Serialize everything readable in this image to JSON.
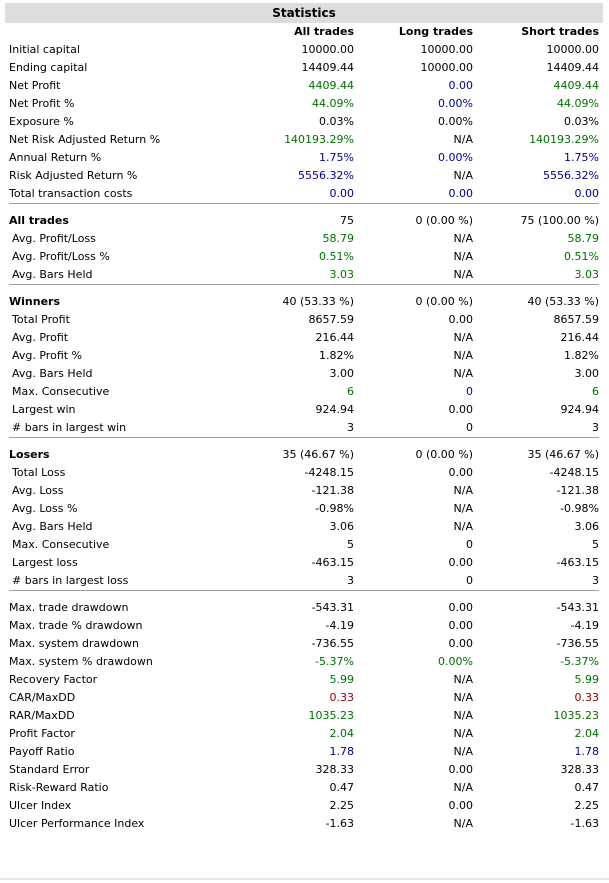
{
  "title": "Statistics",
  "columns": [
    "All trades",
    "Long trades",
    "Short trades"
  ],
  "colors": {
    "positive": "#007000",
    "neutral": "#00008b",
    "negative": "#8b0000",
    "header_bg": "#dddddd"
  },
  "sections": [
    {
      "rows": [
        {
          "label": "Initial capital",
          "values": [
            "10000.00",
            "10000.00",
            "10000.00"
          ],
          "colors": [
            "",
            "",
            ""
          ]
        },
        {
          "label": "Ending capital",
          "values": [
            "14409.44",
            "10000.00",
            "14409.44"
          ],
          "colors": [
            "",
            "",
            ""
          ]
        },
        {
          "label": "Net Profit",
          "values": [
            "4409.44",
            "0.00",
            "4409.44"
          ],
          "colors": [
            "green",
            "blue",
            "green"
          ]
        },
        {
          "label": "Net Profit %",
          "values": [
            "44.09%",
            "0.00%",
            "44.09%"
          ],
          "colors": [
            "green",
            "blue",
            "green"
          ]
        },
        {
          "label": "Exposure %",
          "values": [
            "0.03%",
            "0.00%",
            "0.03%"
          ],
          "colors": [
            "",
            "",
            ""
          ]
        },
        {
          "label": "Net Risk Adjusted Return %",
          "values": [
            "140193.29%",
            "N/A",
            "140193.29%"
          ],
          "colors": [
            "green",
            "",
            "green"
          ]
        },
        {
          "label": "Annual Return %",
          "values": [
            "1.75%",
            "0.00%",
            "1.75%"
          ],
          "colors": [
            "blue",
            "blue",
            "blue"
          ]
        },
        {
          "label": "Risk Adjusted Return %",
          "values": [
            "5556.32%",
            "N/A",
            "5556.32%"
          ],
          "colors": [
            "blue",
            "",
            "blue"
          ]
        },
        {
          "label": "Total transaction costs",
          "values": [
            "0.00",
            "0.00",
            "0.00"
          ],
          "colors": [
            "blue",
            "blue",
            "blue"
          ]
        }
      ]
    },
    {
      "rows": [
        {
          "label": "All trades",
          "head": true,
          "values": [
            "75",
            "0 (0.00 %)",
            "75 (100.00 %)"
          ],
          "colors": [
            "",
            "",
            ""
          ]
        },
        {
          "label": "Avg. Profit/Loss",
          "indent": true,
          "values": [
            "58.79",
            "N/A",
            "58.79"
          ],
          "colors": [
            "green",
            "",
            "green"
          ]
        },
        {
          "label": "Avg. Profit/Loss %",
          "indent": true,
          "values": [
            "0.51%",
            "N/A",
            "0.51%"
          ],
          "colors": [
            "green",
            "",
            "green"
          ]
        },
        {
          "label": "Avg. Bars Held",
          "indent": true,
          "values": [
            "3.03",
            "N/A",
            "3.03"
          ],
          "colors": [
            "green",
            "",
            "green"
          ]
        }
      ]
    },
    {
      "rows": [
        {
          "label": "Winners",
          "head": true,
          "values": [
            "40 (53.33 %)",
            "0 (0.00 %)",
            "40 (53.33 %)"
          ],
          "colors": [
            "",
            "",
            ""
          ]
        },
        {
          "label": "Total Profit",
          "indent": true,
          "values": [
            "8657.59",
            "0.00",
            "8657.59"
          ],
          "colors": [
            "",
            "",
            ""
          ]
        },
        {
          "label": "Avg. Profit",
          "indent": true,
          "values": [
            "216.44",
            "N/A",
            "216.44"
          ],
          "colors": [
            "",
            "",
            ""
          ]
        },
        {
          "label": "Avg. Profit %",
          "indent": true,
          "values": [
            "1.82%",
            "N/A",
            "1.82%"
          ],
          "colors": [
            "",
            "",
            ""
          ]
        },
        {
          "label": "Avg. Bars Held",
          "indent": true,
          "values": [
            "3.00",
            "N/A",
            "3.00"
          ],
          "colors": [
            "",
            "",
            ""
          ]
        },
        {
          "label": "Max. Consecutive",
          "indent": true,
          "values": [
            "6",
            "0",
            "6"
          ],
          "colors": [
            "green",
            "blue",
            "green"
          ]
        },
        {
          "label": "Largest win",
          "indent": true,
          "values": [
            "924.94",
            "0.00",
            "924.94"
          ],
          "colors": [
            "",
            "",
            ""
          ]
        },
        {
          "label": "# bars in largest win",
          "indent": true,
          "values": [
            "3",
            "0",
            "3"
          ],
          "colors": [
            "",
            "",
            ""
          ]
        }
      ]
    },
    {
      "rows": [
        {
          "label": "Losers",
          "head": true,
          "values": [
            "35 (46.67 %)",
            "0 (0.00 %)",
            "35 (46.67 %)"
          ],
          "colors": [
            "",
            "",
            ""
          ]
        },
        {
          "label": "Total Loss",
          "indent": true,
          "values": [
            "-4248.15",
            "0.00",
            "-4248.15"
          ],
          "colors": [
            "",
            "",
            ""
          ]
        },
        {
          "label": "Avg. Loss",
          "indent": true,
          "values": [
            "-121.38",
            "N/A",
            "-121.38"
          ],
          "colors": [
            "",
            "",
            ""
          ]
        },
        {
          "label": "Avg. Loss %",
          "indent": true,
          "values": [
            "-0.98%",
            "N/A",
            "-0.98%"
          ],
          "colors": [
            "",
            "",
            ""
          ]
        },
        {
          "label": "Avg. Bars Held",
          "indent": true,
          "values": [
            "3.06",
            "N/A",
            "3.06"
          ],
          "colors": [
            "",
            "",
            ""
          ]
        },
        {
          "label": "Max. Consecutive",
          "indent": true,
          "values": [
            "5",
            "0",
            "5"
          ],
          "colors": [
            "",
            "",
            ""
          ]
        },
        {
          "label": "Largest loss",
          "indent": true,
          "values": [
            "-463.15",
            "0.00",
            "-463.15"
          ],
          "colors": [
            "",
            "",
            ""
          ]
        },
        {
          "label": "# bars in largest loss",
          "indent": true,
          "values": [
            "3",
            "0",
            "3"
          ],
          "colors": [
            "",
            "",
            ""
          ]
        }
      ]
    },
    {
      "rows": [
        {
          "label": "Max. trade drawdown",
          "values": [
            "-543.31",
            "0.00",
            "-543.31"
          ],
          "colors": [
            "",
            "",
            ""
          ]
        },
        {
          "label": "Max. trade % drawdown",
          "values": [
            "-4.19",
            "0.00",
            "-4.19"
          ],
          "colors": [
            "",
            "",
            ""
          ]
        },
        {
          "label": "Max. system drawdown",
          "values": [
            "-736.55",
            "0.00",
            "-736.55"
          ],
          "colors": [
            "",
            "",
            ""
          ]
        },
        {
          "label": "Max. system % drawdown",
          "values": [
            "-5.37%",
            "0.00%",
            "-5.37%"
          ],
          "colors": [
            "green",
            "green",
            "green"
          ]
        },
        {
          "label": "Recovery Factor",
          "values": [
            "5.99",
            "N/A",
            "5.99"
          ],
          "colors": [
            "green",
            "",
            "green"
          ]
        },
        {
          "label": "CAR/MaxDD",
          "values": [
            "0.33",
            "N/A",
            "0.33"
          ],
          "colors": [
            "red",
            "",
            "red"
          ]
        },
        {
          "label": "RAR/MaxDD",
          "values": [
            "1035.23",
            "N/A",
            "1035.23"
          ],
          "colors": [
            "green",
            "",
            "green"
          ]
        },
        {
          "label": "Profit Factor",
          "values": [
            "2.04",
            "N/A",
            "2.04"
          ],
          "colors": [
            "green",
            "",
            "green"
          ]
        },
        {
          "label": "Payoff Ratio",
          "values": [
            "1.78",
            "N/A",
            "1.78"
          ],
          "colors": [
            "blue",
            "",
            "blue"
          ]
        },
        {
          "label": "Standard Error",
          "values": [
            "328.33",
            "0.00",
            "328.33"
          ],
          "colors": [
            "",
            "",
            ""
          ]
        },
        {
          "label": "Risk-Reward Ratio",
          "values": [
            "0.47",
            "N/A",
            "0.47"
          ],
          "colors": [
            "",
            "",
            ""
          ]
        },
        {
          "label": "Ulcer Index",
          "values": [
            "2.25",
            "0.00",
            "2.25"
          ],
          "colors": [
            "",
            "",
            ""
          ]
        },
        {
          "label": "Ulcer Performance Index",
          "values": [
            "-1.63",
            "N/A",
            "-1.63"
          ],
          "colors": [
            "",
            "",
            ""
          ]
        }
      ]
    }
  ]
}
